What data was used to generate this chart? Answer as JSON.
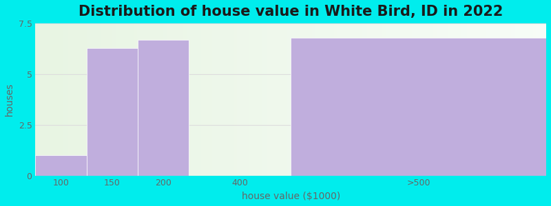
{
  "title": "Distribution of house value in White Bird, ID in 2022",
  "xlabel": "house value ($1000)",
  "ylabel": "houses",
  "categories": [
    "100",
    "150",
    "200",
    "400",
    ">500"
  ],
  "values": [
    1.0,
    6.3,
    6.7,
    0.0,
    6.8
  ],
  "bar_color": "#c0aedd",
  "bar_edge_color": "#c0aedd",
  "background_color": "#00eded",
  "plot_bg_left": "#e8f5e2",
  "plot_bg_right": "#f5faf0",
  "ylim": [
    0,
    7.5
  ],
  "yticks": [
    0,
    2.5,
    5,
    7.5
  ],
  "title_fontsize": 15,
  "label_fontsize": 10,
  "tick_fontsize": 9,
  "tick_color": "#666666",
  "grid_color": "#dddddd",
  "bin_edges": [
    0,
    1,
    2,
    3,
    5,
    10
  ],
  "bin_centers": [
    0.5,
    1.5,
    2.5,
    4.0,
    7.5
  ],
  "xtick_positions": [
    0.5,
    1.5,
    2.5,
    4.0,
    7.5
  ],
  "xlim": [
    0,
    10
  ]
}
